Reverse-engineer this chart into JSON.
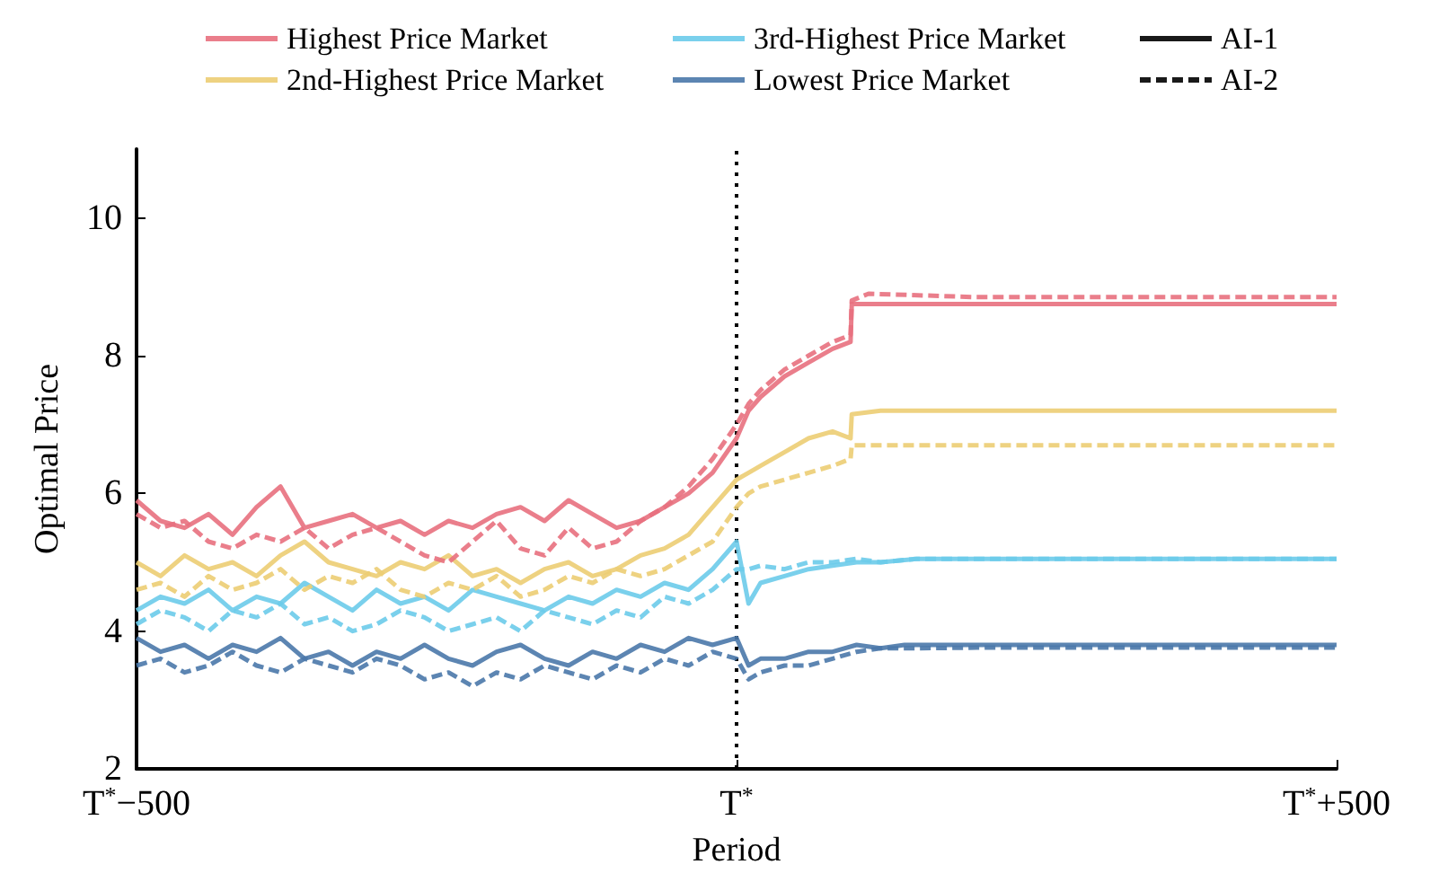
{
  "chart_data": {
    "type": "line",
    "xlabel": "Period",
    "ylabel": "Optimal Price",
    "xlim": [
      -500,
      500
    ],
    "ylim": [
      2,
      11
    ],
    "xticks": [
      {
        "value": -500,
        "label": "T$^{*}$−500"
      },
      {
        "value": 0,
        "label": "T$^{*}$"
      },
      {
        "value": 500,
        "label": "T$^{*}$+500"
      }
    ],
    "yticks": [
      2,
      4,
      6,
      8,
      10
    ],
    "grid": false,
    "legend": "top",
    "marker": "none",
    "ref_lines": [
      {
        "axis": "x",
        "value": 0,
        "label": null,
        "color": "#000000",
        "line_style": "dotted"
      }
    ],
    "series": [
      {
        "name": "Highest Price Market",
        "color": "#e8707e",
        "line_style": "solid",
        "x": [
          -500,
          -480,
          -460,
          -440,
          -420,
          -400,
          -380,
          -360,
          -340,
          -320,
          -300,
          -280,
          -260,
          -240,
          -220,
          -200,
          -180,
          -160,
          -140,
          -120,
          -100,
          -80,
          -60,
          -40,
          -20,
          0,
          10,
          20,
          40,
          60,
          80,
          95,
          96,
          120,
          200,
          300,
          400,
          500
        ],
        "values": [
          5.9,
          5.6,
          5.5,
          5.7,
          5.4,
          5.8,
          6.1,
          5.5,
          5.6,
          5.7,
          5.5,
          5.6,
          5.4,
          5.6,
          5.5,
          5.7,
          5.8,
          5.6,
          5.9,
          5.7,
          5.5,
          5.6,
          5.8,
          6.0,
          6.3,
          6.8,
          7.2,
          7.4,
          7.7,
          7.9,
          8.1,
          8.2,
          8.75,
          8.75,
          8.75,
          8.75,
          8.75,
          8.75
        ]
      },
      {
        "name": "2nd-Highest Price Market",
        "color": "#eccd73",
        "line_style": "solid",
        "x": [
          -500,
          -480,
          -460,
          -440,
          -420,
          -400,
          -380,
          -360,
          -340,
          -320,
          -300,
          -280,
          -260,
          -240,
          -220,
          -200,
          -180,
          -160,
          -140,
          -120,
          -100,
          -80,
          -60,
          -40,
          -20,
          0,
          10,
          20,
          40,
          60,
          80,
          95,
          96,
          120,
          200,
          300,
          400,
          500
        ],
        "values": [
          5.0,
          4.8,
          5.1,
          4.9,
          5.0,
          4.8,
          5.1,
          5.3,
          5.0,
          4.9,
          4.8,
          5.0,
          4.9,
          5.1,
          4.8,
          4.9,
          4.7,
          4.9,
          5.0,
          4.8,
          4.9,
          5.1,
          5.2,
          5.4,
          5.8,
          6.2,
          6.3,
          6.4,
          6.6,
          6.8,
          6.9,
          6.8,
          7.15,
          7.2,
          7.2,
          7.2,
          7.2,
          7.2
        ]
      },
      {
        "name": "3rd-Highest Price Market",
        "color": "#6ccbea",
        "line_style": "solid",
        "x": [
          -500,
          -480,
          -460,
          -440,
          -420,
          -400,
          -380,
          -360,
          -340,
          -320,
          -300,
          -280,
          -260,
          -240,
          -220,
          -200,
          -180,
          -160,
          -140,
          -120,
          -100,
          -80,
          -60,
          -40,
          -20,
          0,
          10,
          20,
          40,
          60,
          80,
          100,
          120,
          150,
          190,
          300,
          400,
          500
        ],
        "values": [
          4.3,
          4.5,
          4.4,
          4.6,
          4.3,
          4.5,
          4.4,
          4.7,
          4.5,
          4.3,
          4.6,
          4.4,
          4.5,
          4.3,
          4.6,
          4.5,
          4.4,
          4.3,
          4.5,
          4.4,
          4.6,
          4.5,
          4.7,
          4.6,
          4.9,
          5.3,
          4.4,
          4.7,
          4.8,
          4.9,
          4.95,
          5.0,
          5.0,
          5.05,
          5.05,
          5.05,
          5.05,
          5.05
        ]
      },
      {
        "name": "Lowest Price Market",
        "color": "#4a78aa",
        "line_style": "solid",
        "x": [
          -500,
          -480,
          -460,
          -440,
          -420,
          -400,
          -380,
          -360,
          -340,
          -320,
          -300,
          -280,
          -260,
          -240,
          -220,
          -200,
          -180,
          -160,
          -140,
          -120,
          -100,
          -80,
          -60,
          -40,
          -20,
          0,
          10,
          20,
          40,
          60,
          80,
          100,
          120,
          140,
          200,
          300,
          400,
          500
        ],
        "values": [
          3.9,
          3.7,
          3.8,
          3.6,
          3.8,
          3.7,
          3.9,
          3.6,
          3.7,
          3.5,
          3.7,
          3.6,
          3.8,
          3.6,
          3.5,
          3.7,
          3.8,
          3.6,
          3.5,
          3.7,
          3.6,
          3.8,
          3.7,
          3.9,
          3.8,
          3.9,
          3.5,
          3.6,
          3.6,
          3.7,
          3.7,
          3.8,
          3.75,
          3.8,
          3.8,
          3.8,
          3.8,
          3.8
        ]
      },
      {
        "name": "AI-1",
        "color": "#000000",
        "line_style": "solid"
      },
      {
        "name": "AI-2",
        "color": "#000000",
        "line_style": "dashed"
      },
      {
        "color": "#e8707e",
        "line_style": "dashed",
        "x": [
          -500,
          -480,
          -460,
          -440,
          -420,
          -400,
          -380,
          -360,
          -340,
          -320,
          -300,
          -280,
          -260,
          -240,
          -220,
          -200,
          -180,
          -160,
          -140,
          -120,
          -100,
          -80,
          -60,
          -40,
          -20,
          0,
          10,
          20,
          40,
          60,
          80,
          95,
          96,
          110,
          200,
          300,
          400,
          500
        ],
        "values": [
          5.7,
          5.5,
          5.6,
          5.3,
          5.2,
          5.4,
          5.3,
          5.5,
          5.2,
          5.4,
          5.5,
          5.3,
          5.1,
          5.0,
          5.3,
          5.6,
          5.2,
          5.1,
          5.5,
          5.2,
          5.3,
          5.6,
          5.8,
          6.1,
          6.5,
          7.0,
          7.3,
          7.5,
          7.8,
          8.0,
          8.2,
          8.3,
          8.8,
          8.9,
          8.85,
          8.85,
          8.85,
          8.85
        ]
      },
      {
        "color": "#eccd73",
        "line_style": "dashed",
        "x": [
          -500,
          -480,
          -460,
          -440,
          -420,
          -400,
          -380,
          -360,
          -340,
          -320,
          -300,
          -280,
          -260,
          -240,
          -220,
          -200,
          -180,
          -160,
          -140,
          -120,
          -100,
          -80,
          -60,
          -40,
          -20,
          0,
          10,
          20,
          40,
          60,
          80,
          95,
          96,
          120,
          200,
          300,
          400,
          500
        ],
        "values": [
          4.6,
          4.7,
          4.5,
          4.8,
          4.6,
          4.7,
          4.9,
          4.6,
          4.8,
          4.7,
          4.9,
          4.6,
          4.5,
          4.7,
          4.6,
          4.8,
          4.5,
          4.6,
          4.8,
          4.7,
          4.9,
          4.8,
          4.9,
          5.1,
          5.3,
          5.8,
          6.0,
          6.1,
          6.2,
          6.3,
          6.4,
          6.5,
          6.7,
          6.7,
          6.7,
          6.7,
          6.7,
          6.7
        ]
      },
      {
        "color": "#6ccbea",
        "line_style": "dashed",
        "x": [
          -500,
          -480,
          -460,
          -440,
          -420,
          -400,
          -380,
          -360,
          -340,
          -320,
          -300,
          -280,
          -260,
          -240,
          -220,
          -200,
          -180,
          -160,
          -140,
          -120,
          -100,
          -80,
          -60,
          -40,
          -20,
          0,
          10,
          20,
          40,
          60,
          80,
          100,
          120,
          150,
          190,
          300,
          400,
          500
        ],
        "values": [
          4.1,
          4.3,
          4.2,
          4.0,
          4.3,
          4.2,
          4.4,
          4.1,
          4.2,
          4.0,
          4.1,
          4.3,
          4.2,
          4.0,
          4.1,
          4.2,
          4.0,
          4.3,
          4.2,
          4.1,
          4.3,
          4.2,
          4.5,
          4.4,
          4.6,
          4.9,
          4.9,
          4.95,
          4.9,
          5.0,
          5.0,
          5.05,
          5.0,
          5.05,
          5.05,
          5.05,
          5.05,
          5.05
        ]
      },
      {
        "color": "#4a78aa",
        "line_style": "dashed",
        "x": [
          -500,
          -480,
          -460,
          -440,
          -420,
          -400,
          -380,
          -360,
          -340,
          -320,
          -300,
          -280,
          -260,
          -240,
          -220,
          -200,
          -180,
          -160,
          -140,
          -120,
          -100,
          -80,
          -60,
          -40,
          -20,
          0,
          10,
          20,
          40,
          60,
          80,
          100,
          120,
          140,
          200,
          300,
          400,
          500
        ],
        "values": [
          3.5,
          3.6,
          3.4,
          3.5,
          3.7,
          3.5,
          3.4,
          3.6,
          3.5,
          3.4,
          3.6,
          3.5,
          3.3,
          3.4,
          3.2,
          3.4,
          3.3,
          3.5,
          3.4,
          3.3,
          3.5,
          3.4,
          3.6,
          3.5,
          3.7,
          3.6,
          3.3,
          3.4,
          3.5,
          3.5,
          3.6,
          3.7,
          3.75,
          3.75,
          3.76,
          3.76,
          3.76,
          3.76
        ]
      }
    ]
  }
}
